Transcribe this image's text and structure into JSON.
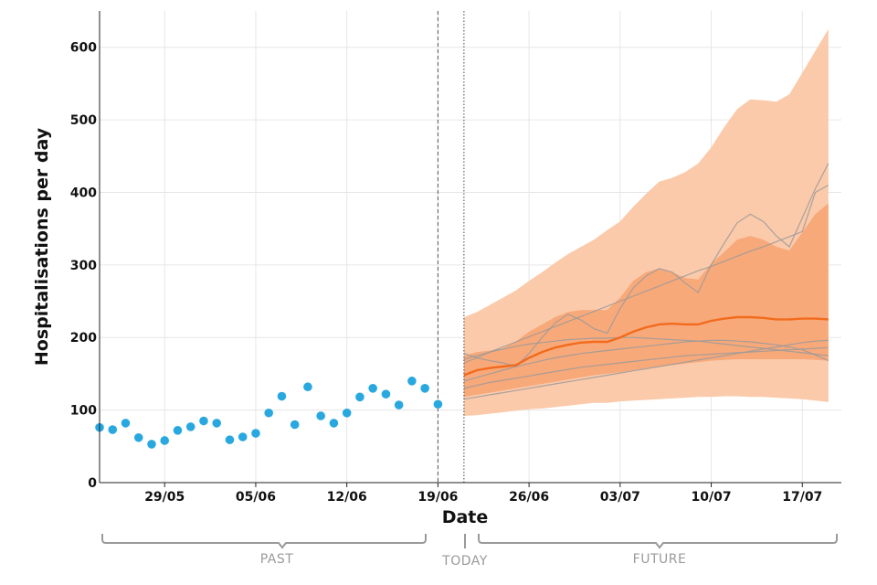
{
  "chart_data": {
    "type": "line",
    "xlabel": "Date",
    "ylabel": "Hospitalisations per day",
    "ylim": [
      0,
      650
    ],
    "yticks": [
      0,
      100,
      200,
      300,
      400,
      500,
      600
    ],
    "xlim": [
      "2021-05-24",
      "2021-07-20"
    ],
    "xtick_labels": [
      {
        "date": "2021-05-29",
        "label": "29/05"
      },
      {
        "date": "2021-06-05",
        "label": "05/06"
      },
      {
        "date": "2021-06-12",
        "label": "12/06"
      },
      {
        "date": "2021-06-19",
        "label": "19/06"
      },
      {
        "date": "2021-06-26",
        "label": "26/06"
      },
      {
        "date": "2021-07-03",
        "label": "03/07"
      },
      {
        "date": "2021-07-10",
        "label": "10/07"
      },
      {
        "date": "2021-07-17",
        "label": "17/07"
      }
    ],
    "grid": true,
    "periods": {
      "past": "PAST",
      "today": "TODAY",
      "future": "FUTURE"
    },
    "today_line_date": "2021-06-19",
    "forecast_start_line_date": "2021-06-21",
    "colors": {
      "observed": "#29a8e0",
      "median": "#f26b1d",
      "band_outer": "#fbcaaa",
      "band_inner": "#f8a97a",
      "scenario": "#9a9a9a"
    },
    "observed": {
      "x": [
        "2021-05-24",
        "2021-05-25",
        "2021-05-26",
        "2021-05-27",
        "2021-05-28",
        "2021-05-29",
        "2021-05-30",
        "2021-05-31",
        "2021-06-01",
        "2021-06-02",
        "2021-06-03",
        "2021-06-04",
        "2021-06-05",
        "2021-06-06",
        "2021-06-07",
        "2021-06-08",
        "2021-06-09",
        "2021-06-10",
        "2021-06-11",
        "2021-06-12",
        "2021-06-13",
        "2021-06-14",
        "2021-06-15",
        "2021-06-16",
        "2021-06-17",
        "2021-06-18",
        "2021-06-19"
      ],
      "y": [
        76,
        73,
        82,
        62,
        53,
        58,
        72,
        77,
        85,
        82,
        59,
        63,
        68,
        96,
        119,
        80,
        132,
        92,
        82,
        96,
        118,
        130,
        122,
        107,
        140,
        130,
        108
      ]
    },
    "forecast": {
      "x": [
        "2021-06-21",
        "2021-06-22",
        "2021-06-23",
        "2021-06-24",
        "2021-06-25",
        "2021-06-26",
        "2021-06-27",
        "2021-06-28",
        "2021-06-29",
        "2021-06-30",
        "2021-07-01",
        "2021-07-02",
        "2021-07-03",
        "2021-07-04",
        "2021-07-05",
        "2021-07-06",
        "2021-07-07",
        "2021-07-08",
        "2021-07-09",
        "2021-07-10",
        "2021-07-11",
        "2021-07-12",
        "2021-07-13",
        "2021-07-14",
        "2021-07-15",
        "2021-07-16",
        "2021-07-17",
        "2021-07-18",
        "2021-07-19"
      ],
      "median": [
        148,
        155,
        158,
        160,
        162,
        172,
        180,
        186,
        190,
        193,
        194,
        194,
        200,
        208,
        214,
        218,
        219,
        218,
        218,
        223,
        226,
        228,
        228,
        227,
        225,
        225,
        226,
        226,
        225
      ],
      "band_outer_low": [
        92,
        93,
        95,
        97,
        99,
        101,
        102,
        104,
        106,
        108,
        110,
        110,
        112,
        113,
        114,
        115,
        116,
        117,
        118,
        118,
        119,
        119,
        118,
        118,
        117,
        116,
        115,
        113,
        111
      ],
      "band_outer_high": [
        228,
        235,
        245,
        255,
        265,
        278,
        290,
        303,
        315,
        325,
        335,
        348,
        360,
        380,
        398,
        415,
        420,
        428,
        440,
        462,
        490,
        515,
        528,
        527,
        525,
        535,
        565,
        595,
        625
      ],
      "band_inner_low": [
        118,
        121,
        124,
        127,
        130,
        133,
        136,
        139,
        142,
        145,
        148,
        150,
        152,
        155,
        158,
        160,
        162,
        164,
        166,
        168,
        169,
        170,
        170,
        170,
        170,
        170,
        170,
        169,
        168
      ],
      "band_inner_high": [
        175,
        180,
        182,
        185,
        195,
        208,
        218,
        228,
        235,
        238,
        238,
        238,
        255,
        278,
        290,
        295,
        290,
        282,
        280,
        302,
        318,
        335,
        340,
        335,
        325,
        320,
        345,
        370,
        385
      ],
      "scenarios": [
        [
          178,
          172,
          168,
          165,
          160,
          178,
          200,
          220,
          232,
          224,
          212,
          206,
          240,
          268,
          285,
          295,
          290,
          275,
          262,
          300,
          330,
          358,
          370,
          360,
          340,
          325,
          365,
          405,
          440
        ],
        [
          165,
          172,
          180,
          187,
          194,
          201,
          208,
          215,
          222,
          229,
          236,
          243,
          250,
          257,
          264,
          271,
          278,
          285,
          292,
          298,
          305,
          312,
          319,
          325,
          332,
          339,
          346,
          400,
          410
        ],
        [
          170,
          175,
          180,
          184,
          188,
          191,
          193,
          195,
          197,
          198,
          199,
          199,
          200,
          200,
          199,
          198,
          197,
          196,
          195,
          193,
          191,
          189,
          187,
          185,
          183,
          181,
          179,
          177,
          175
        ],
        [
          130,
          134,
          138,
          141,
          144,
          147,
          150,
          153,
          156,
          159,
          161,
          163,
          165,
          167,
          169,
          171,
          173,
          175,
          176,
          177,
          178,
          179,
          180,
          181,
          182,
          183,
          184,
          185,
          186
        ],
        [
          115,
          118,
          121,
          124,
          127,
          130,
          133,
          136,
          139,
          142,
          145,
          148,
          151,
          154,
          157,
          160,
          163,
          166,
          169,
          172,
          175,
          178,
          181,
          184,
          187,
          190,
          193,
          195,
          196
        ],
        [
          140,
          145,
          150,
          155,
          160,
          164,
          168,
          172,
          175,
          178,
          180,
          182,
          184,
          186,
          188,
          190,
          192,
          194,
          195,
          196,
          196,
          195,
          194,
          192,
          190,
          187,
          183,
          176,
          168
        ]
      ]
    }
  }
}
